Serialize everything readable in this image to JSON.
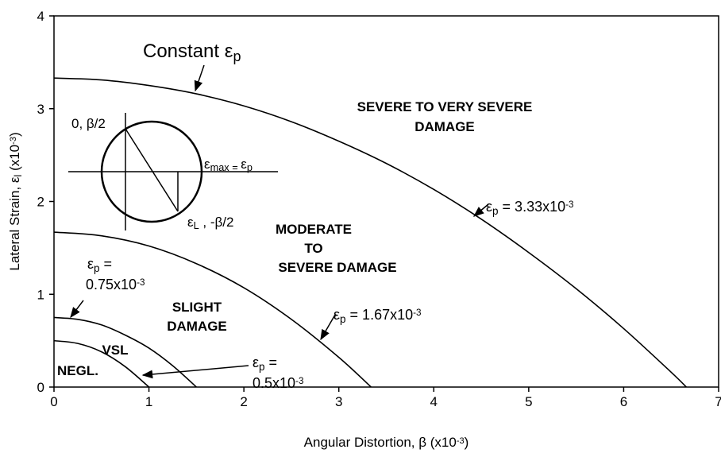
{
  "chart_data": {
    "type": "line",
    "xlabel": [
      {
        "t": "Angular Distortion, β (x10"
      },
      {
        "sup": "-3"
      },
      {
        "t": ")"
      }
    ],
    "ylabel": [
      {
        "t": "Lateral Strain, ε"
      },
      {
        "sub": "l"
      },
      {
        "t": " (x10"
      },
      {
        "sup": "-3"
      },
      {
        "t": ")"
      }
    ],
    "xlim": [
      0,
      7
    ],
    "ylim": [
      0,
      4
    ],
    "xticks": [
      0,
      1,
      2,
      3,
      4,
      5,
      6,
      7
    ],
    "yticks": [
      0,
      1,
      2,
      3,
      4
    ],
    "grid": false,
    "series": [
      {
        "color": "#000000",
        "x": [
          0,
          0.5,
          1,
          1.5,
          2,
          2.5,
          3,
          3.5,
          4,
          4.5,
          5,
          5.5,
          6,
          6.5,
          6.66
        ],
        "values": [
          3.33,
          3.31,
          3.25,
          3.16,
          3.03,
          2.86,
          2.65,
          2.41,
          2.13,
          1.81,
          1.45,
          1.06,
          0.63,
          0.16,
          0
        ]
      },
      {
        "color": "#000000",
        "x": [
          0,
          0.5,
          1,
          1.5,
          2,
          2.5,
          3,
          3.34
        ],
        "values": [
          1.67,
          1.63,
          1.52,
          1.33,
          1.07,
          0.73,
          0.32,
          0
        ]
      },
      {
        "color": "#000000",
        "x": [
          0,
          0.25,
          0.5,
          0.75,
          1,
          1.25,
          1.5
        ],
        "values": [
          0.75,
          0.73,
          0.67,
          0.56,
          0.42,
          0.23,
          0
        ]
      },
      {
        "color": "#000000",
        "x": [
          0,
          0.25,
          0.5,
          0.75,
          1
        ],
        "values": [
          0.5,
          0.47,
          0.38,
          0.22,
          0
        ]
      }
    ],
    "annotations": [
      [
        {
          "t": "Constant ε"
        },
        {
          "sub": "p"
        }
      ],
      [
        {
          "t": "SEVERE TO VERY SEVERE"
        }
      ],
      [
        {
          "t": "DAMAGE"
        }
      ],
      [
        {
          "t": "MODERATE"
        }
      ],
      [
        {
          "t": "TO"
        }
      ],
      [
        {
          "t": "SEVERE DAMAGE"
        }
      ],
      [
        {
          "t": "SLIGHT"
        }
      ],
      [
        {
          "t": "DAMAGE"
        }
      ],
      [
        {
          "t": "VSL"
        }
      ],
      [
        {
          "t": "NEGL."
        }
      ],
      [
        {
          "t": "ε"
        },
        {
          "sub": "p"
        },
        {
          "t": " = 3.33x10"
        },
        {
          "sup": "-3"
        }
      ],
      [
        {
          "t": "ε"
        },
        {
          "sub": "p"
        },
        {
          "t": " = 1.67x10"
        },
        {
          "sup": "-3"
        }
      ],
      [
        {
          "t": "ε"
        },
        {
          "sub": "p"
        },
        {
          "t": " ="
        }
      ],
      [
        {
          "t": "0.75x10"
        },
        {
          "sup": "-3"
        }
      ],
      [
        {
          "t": "ε"
        },
        {
          "sub": "p"
        },
        {
          "t": " ="
        }
      ],
      [
        {
          "t": "0.5x10"
        },
        {
          "sup": "-3"
        }
      ],
      [
        {
          "t": "0, β/2"
        }
      ],
      [
        {
          "t": "ε"
        },
        {
          "sub": "max = "
        },
        {
          "t": "ε"
        },
        {
          "sub": "p"
        }
      ],
      [
        {
          "t": "ε"
        },
        {
          "sub": "L"
        },
        {
          "t": " , -β/2"
        }
      ]
    ]
  }
}
